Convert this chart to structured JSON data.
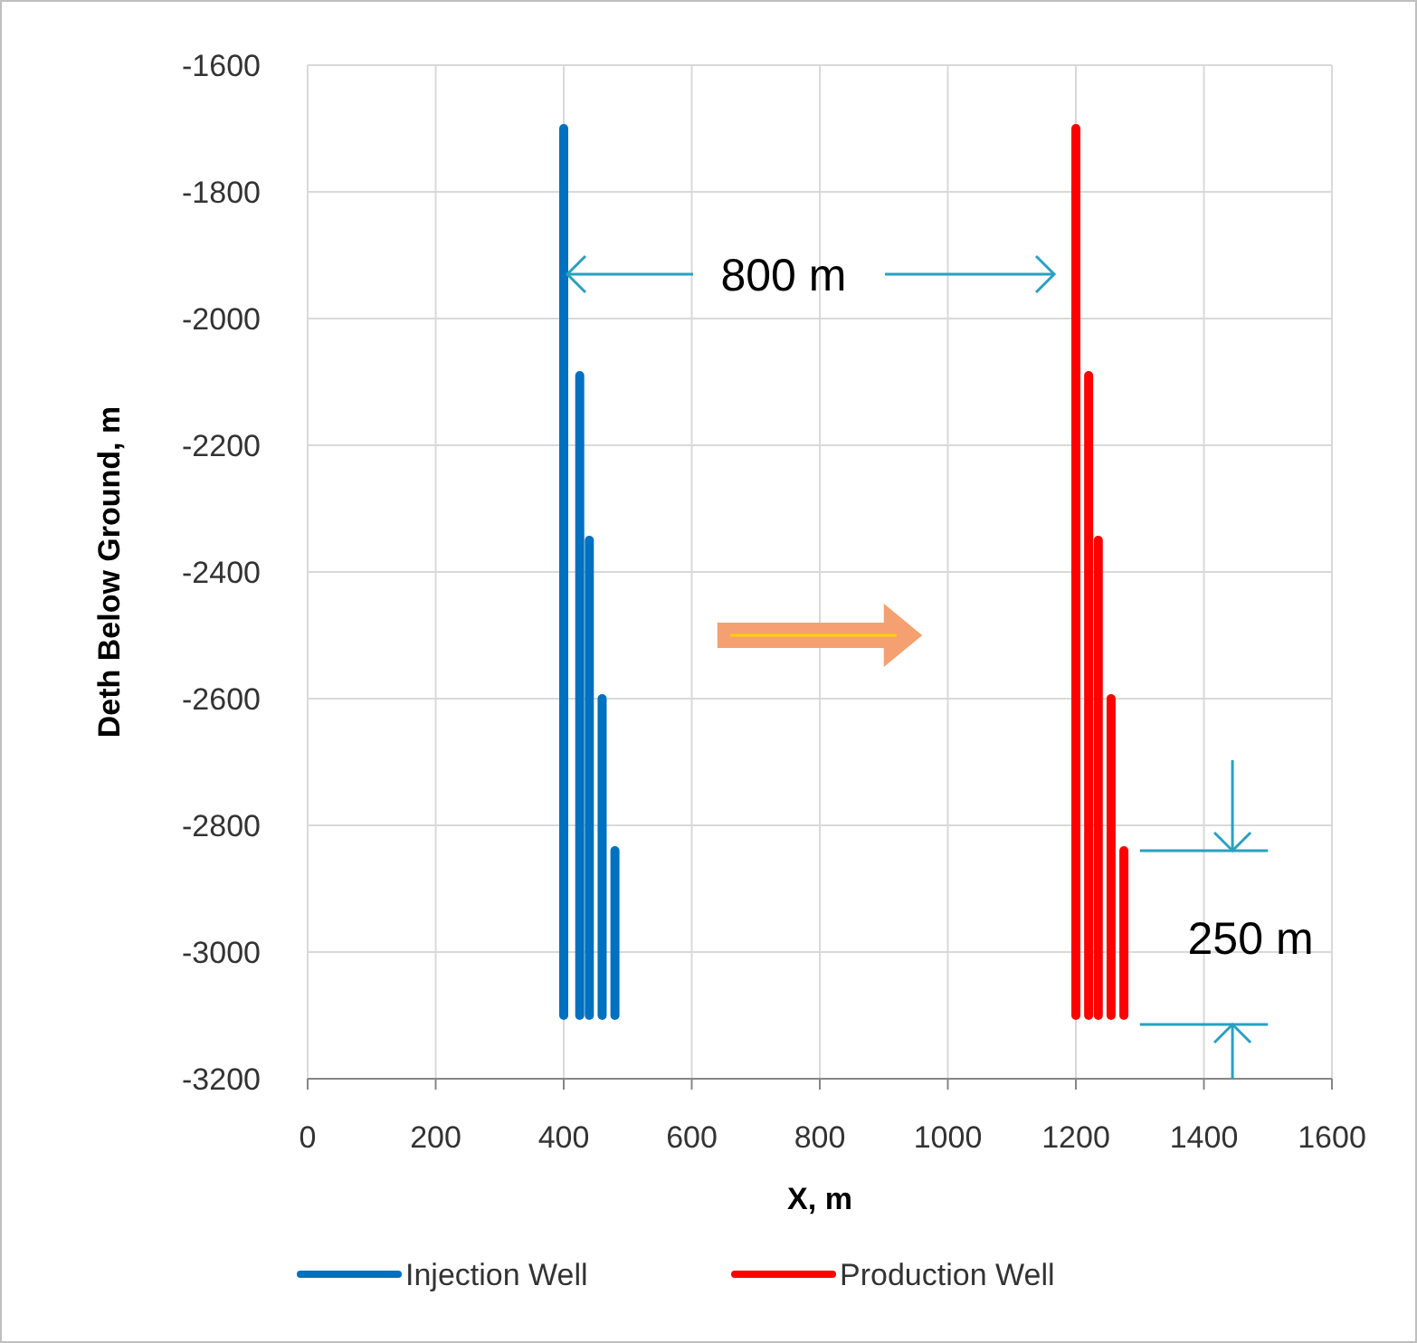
{
  "chart_data": {
    "type": "line",
    "xlabel": "X, m",
    "ylabel": "Deth Below Ground, m",
    "xlim": [
      0,
      1600
    ],
    "xticks": [
      0,
      200,
      400,
      600,
      800,
      1000,
      1200,
      1400,
      1600
    ],
    "ylim": [
      -3200,
      -1600
    ],
    "yticks": [
      -3200,
      -3000,
      -2800,
      -2600,
      -2400,
      -2200,
      -2000,
      -1800,
      -1600
    ],
    "grid": true,
    "legend": "bottom",
    "marker": "none",
    "line_style": "solid",
    "series": [
      {
        "name": "Injection Well",
        "color": "#0070c0",
        "x": [
          400,
          400
        ],
        "values": [
          -1700,
          -3100
        ]
      },
      {
        "color": "#0070c0",
        "x": [
          425,
          425
        ],
        "values": [
          -2090,
          -3100
        ]
      },
      {
        "color": "#0070c0",
        "x": [
          440,
          440
        ],
        "values": [
          -2350,
          -3100
        ]
      },
      {
        "color": "#0070c0",
        "x": [
          460,
          460
        ],
        "values": [
          -2600,
          -3100
        ]
      },
      {
        "color": "#0070c0",
        "x": [
          480,
          480
        ],
        "values": [
          -2840,
          -3100
        ]
      },
      {
        "name": "Production Well",
        "color": "#ff0000",
        "x": [
          1200,
          1200
        ],
        "values": [
          -1700,
          -3100
        ]
      },
      {
        "color": "#ff0000",
        "x": [
          1220,
          1220
        ],
        "values": [
          -2090,
          -3100
        ]
      },
      {
        "color": "#ff0000",
        "x": [
          1235,
          1235
        ],
        "values": [
          -2350,
          -3100
        ]
      },
      {
        "color": "#ff0000",
        "x": [
          1255,
          1255
        ],
        "values": [
          -2600,
          -3100
        ]
      },
      {
        "color": "#ff0000",
        "x": [
          1275,
          1275
        ],
        "values": [
          -2840,
          -3100
        ]
      }
    ],
    "annotations": [
      {
        "text": "800 m",
        "x": 400,
        "y": -1930
      },
      "250 m"
    ]
  }
}
